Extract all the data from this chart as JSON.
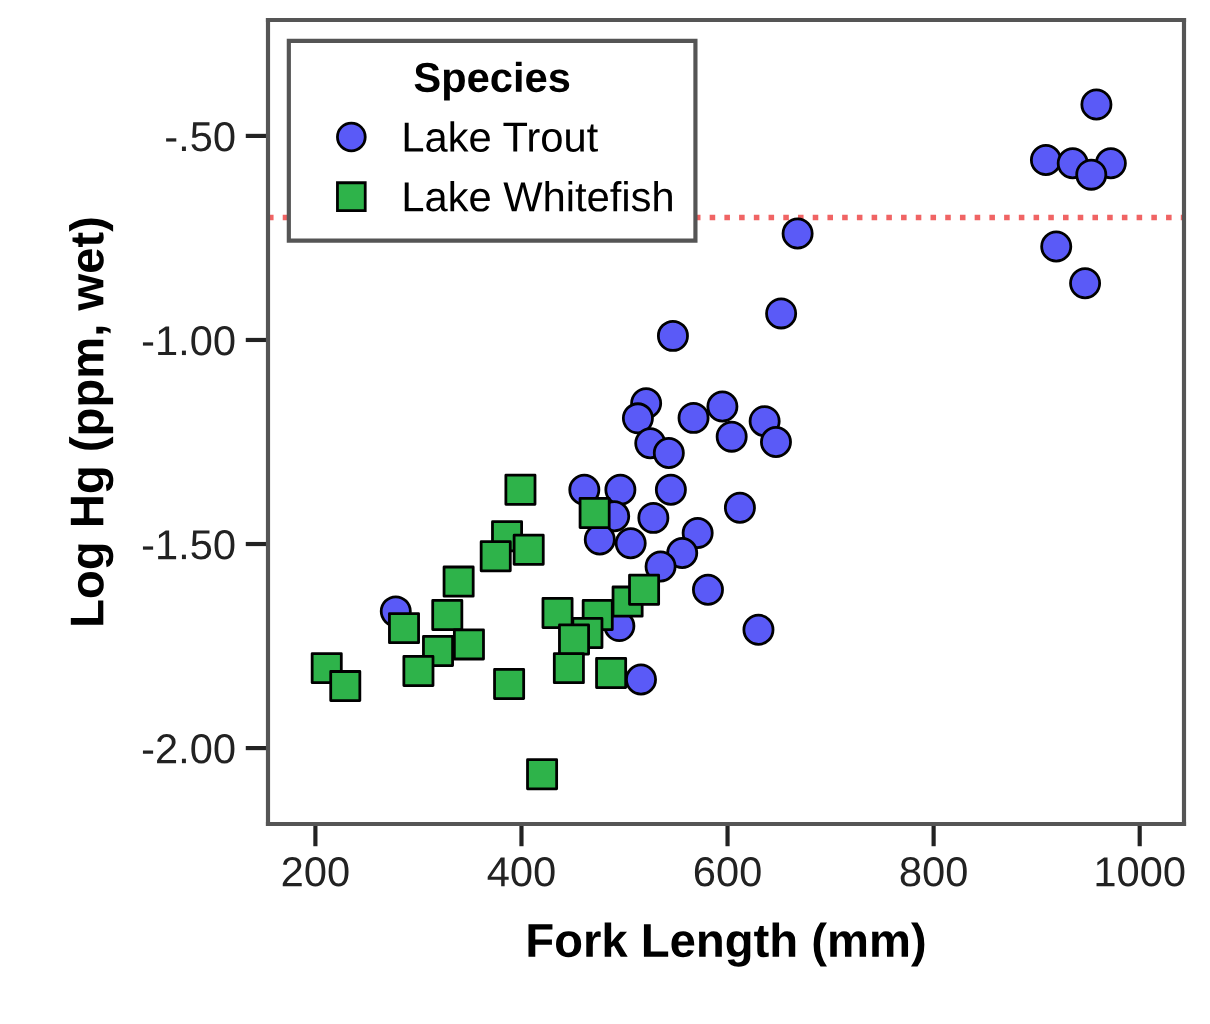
{
  "chart_data": {
    "type": "scatter",
    "xlabel": "Fork Length (mm)",
    "ylabel": "Log Hg (ppm, wet)",
    "legend_title": "Species",
    "legend": "top left",
    "grid": false,
    "xlim": [
      154,
      1043
    ],
    "ylim": [
      -2.186,
      -0.216
    ],
    "xticks": [
      200,
      400,
      600,
      800,
      1000
    ],
    "yticks": [
      {
        "value": -0.5,
        "label": "-.50"
      },
      {
        "value": -1.0,
        "label": "-1.00"
      },
      {
        "value": -1.5,
        "label": "-1.50"
      },
      {
        "value": -2.0,
        "label": "-2.00"
      }
    ],
    "ref_lines": [
      {
        "axis": "y",
        "value": -0.7,
        "color": "#f06464",
        "line_style": "dotted"
      }
    ],
    "series": [
      {
        "name": "Lake Trout",
        "color": "#5a5af7",
        "marker": "circle",
        "x": [
          278,
          547,
          521,
          513,
          567,
          595,
          604,
          636,
          647,
          525,
          543,
          461,
          496,
          545,
          612,
          490,
          528,
          476,
          506,
          571,
          556,
          535,
          581,
          630,
          516,
          495,
          668,
          652,
          958,
          909,
          935,
          972,
          953,
          919,
          947
        ],
        "values": [
          -1.665,
          -0.99,
          -1.155,
          -1.192,
          -1.191,
          -1.163,
          -1.237,
          -1.199,
          -1.25,
          -1.253,
          -1.277,
          -1.367,
          -1.367,
          -1.367,
          -1.411,
          -1.432,
          -1.436,
          -1.489,
          -1.498,
          -1.473,
          -1.522,
          -1.555,
          -1.612,
          -1.71,
          -1.832,
          -1.701,
          -0.739,
          -0.935,
          -0.423,
          -0.559,
          -0.567,
          -0.567,
          -0.595,
          -0.771,
          -0.861
        ]
      },
      {
        "name": "Lake Whitefish",
        "color": "#2eb34a",
        "marker": "square",
        "x": [
          399,
          386,
          407,
          375,
          339,
          328,
          286,
          349,
          319,
          300,
          211,
          229,
          388,
          420,
          435,
          471,
          474,
          464,
          451,
          446,
          487,
          503,
          519
        ],
        "values": [
          -1.367,
          -1.481,
          -1.514,
          -1.53,
          -1.592,
          -1.674,
          -1.706,
          -1.746,
          -1.762,
          -1.811,
          -1.804,
          -1.848,
          -1.843,
          -2.064,
          -1.669,
          -1.424,
          -1.674,
          -1.718,
          -1.734,
          -1.804,
          -1.816,
          -1.641,
          -1.612
        ]
      }
    ]
  }
}
